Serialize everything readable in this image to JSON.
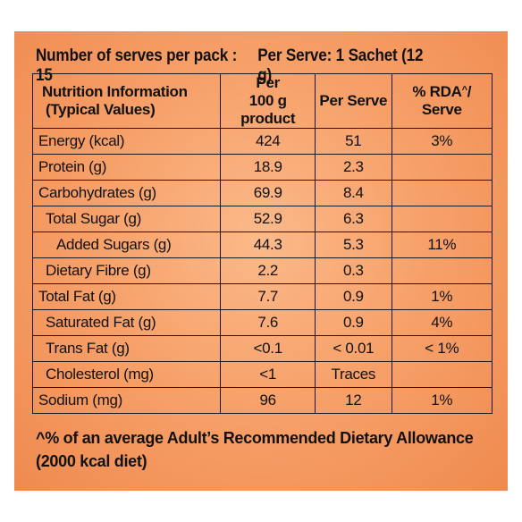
{
  "header": {
    "serves_per_pack": "Number of serves per pack : 15",
    "per_serve": "Per Serve: 1 Sachet (12 g)"
  },
  "table": {
    "col_headers": {
      "name_line1": "Nutrition Information",
      "name_line2": "(Typical Values)",
      "per100_line1": "Per",
      "per100_line2": "100 g product",
      "per_serve": "Per Serve",
      "rda_prefix": "% RDA",
      "rda_sup": "^",
      "rda_suffix": "/ Serve"
    },
    "rows": [
      {
        "name": "Energy (kcal)",
        "per100": "424",
        "serve": "51",
        "rda": "3%",
        "indent": 0
      },
      {
        "name": "Protein (g)",
        "per100": "18.9",
        "serve": "2.3",
        "rda": "",
        "indent": 0
      },
      {
        "name": "Carbohydrates (g)",
        "per100": "69.9",
        "serve": "8.4",
        "rda": "",
        "indent": 0
      },
      {
        "name": "Total Sugar (g)",
        "per100": "52.9",
        "serve": "6.3",
        "rda": "",
        "indent": 1
      },
      {
        "name": "Added Sugars (g)",
        "per100": "44.3",
        "serve": "5.3",
        "rda": "11%",
        "indent": 2
      },
      {
        "name": "Dietary Fibre (g)",
        "per100": "2.2",
        "serve": "0.3",
        "rda": "",
        "indent": 1
      },
      {
        "name": "Total Fat (g)",
        "per100": "7.7",
        "serve": "0.9",
        "rda": "1%",
        "indent": 0
      },
      {
        "name": "Saturated Fat (g)",
        "per100": "7.6",
        "serve": "0.9",
        "rda": "4%",
        "indent": 1
      },
      {
        "name": "Trans Fat (g)",
        "per100": "<0.1",
        "serve": "< 0.01",
        "rda": "< 1%",
        "indent": 1
      },
      {
        "name": "Cholesterol (mg)",
        "per100": "<1",
        "serve": "Traces",
        "rda": "",
        "indent": 1
      },
      {
        "name": "Sodium (mg)",
        "per100": "96",
        "serve": "12",
        "rda": "1%",
        "indent": 0
      }
    ]
  },
  "footnote": {
    "line1": "^% of an average Adult’s Recommended Dietary Allowance",
    "line2": "(2000 kcal diet)"
  }
}
